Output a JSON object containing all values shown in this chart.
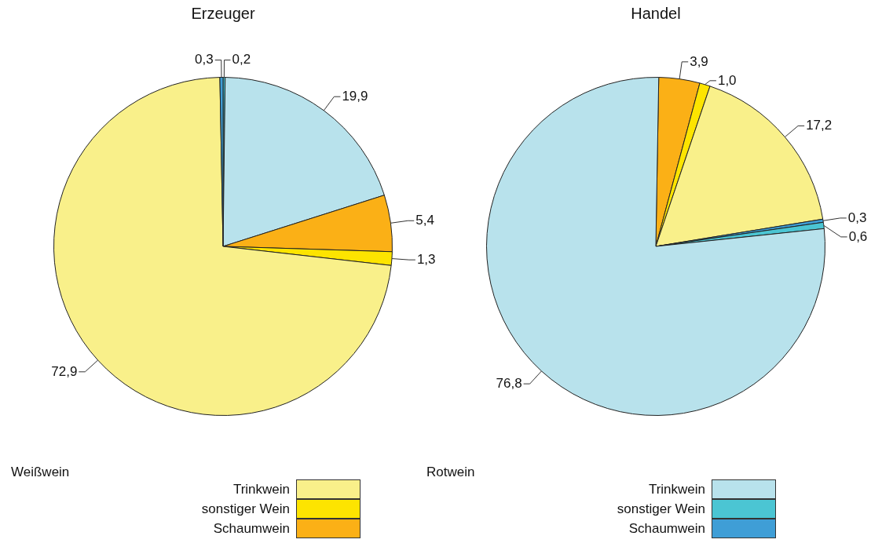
{
  "chart_data": [
    {
      "type": "pie",
      "title": "Erzeuger",
      "categories": [
        "Trinkwein",
        "sonstiger Wein",
        "Schaumwein",
        "Trinkwein",
        "sonstiger Wein",
        "Schaumwein"
      ],
      "values": [
        72.9,
        1.3,
        5.4,
        19.9,
        0.2,
        0.3
      ],
      "colors": [
        "#f9f08a",
        "#fde400",
        "#fbb016",
        "#b8e2ec",
        "#4bc5d3",
        "#3f9ed6"
      ],
      "value_labels": [
        "72,9",
        "1,3",
        "5,4",
        "19,9",
        "0,2",
        "0,3"
      ],
      "legend": "bottom",
      "legend_title": "Weißwein"
    },
    {
      "type": "pie",
      "title": "Handel",
      "categories": [
        null,
        null,
        null,
        null,
        null,
        null
      ],
      "values": [
        17.2,
        1.0,
        3.9,
        76.8,
        0.6,
        0.3
      ],
      "colors": [
        "#f9f08a",
        "#fde400",
        "#fbb016",
        "#b8e2ec",
        "#4bc5d3",
        "#3f9ed6"
      ],
      "value_labels": [
        "17,2",
        "1,0",
        "3,9",
        "76,8",
        "0,6",
        "0,3"
      ],
      "legend_title": "Rotwein"
    }
  ]
}
